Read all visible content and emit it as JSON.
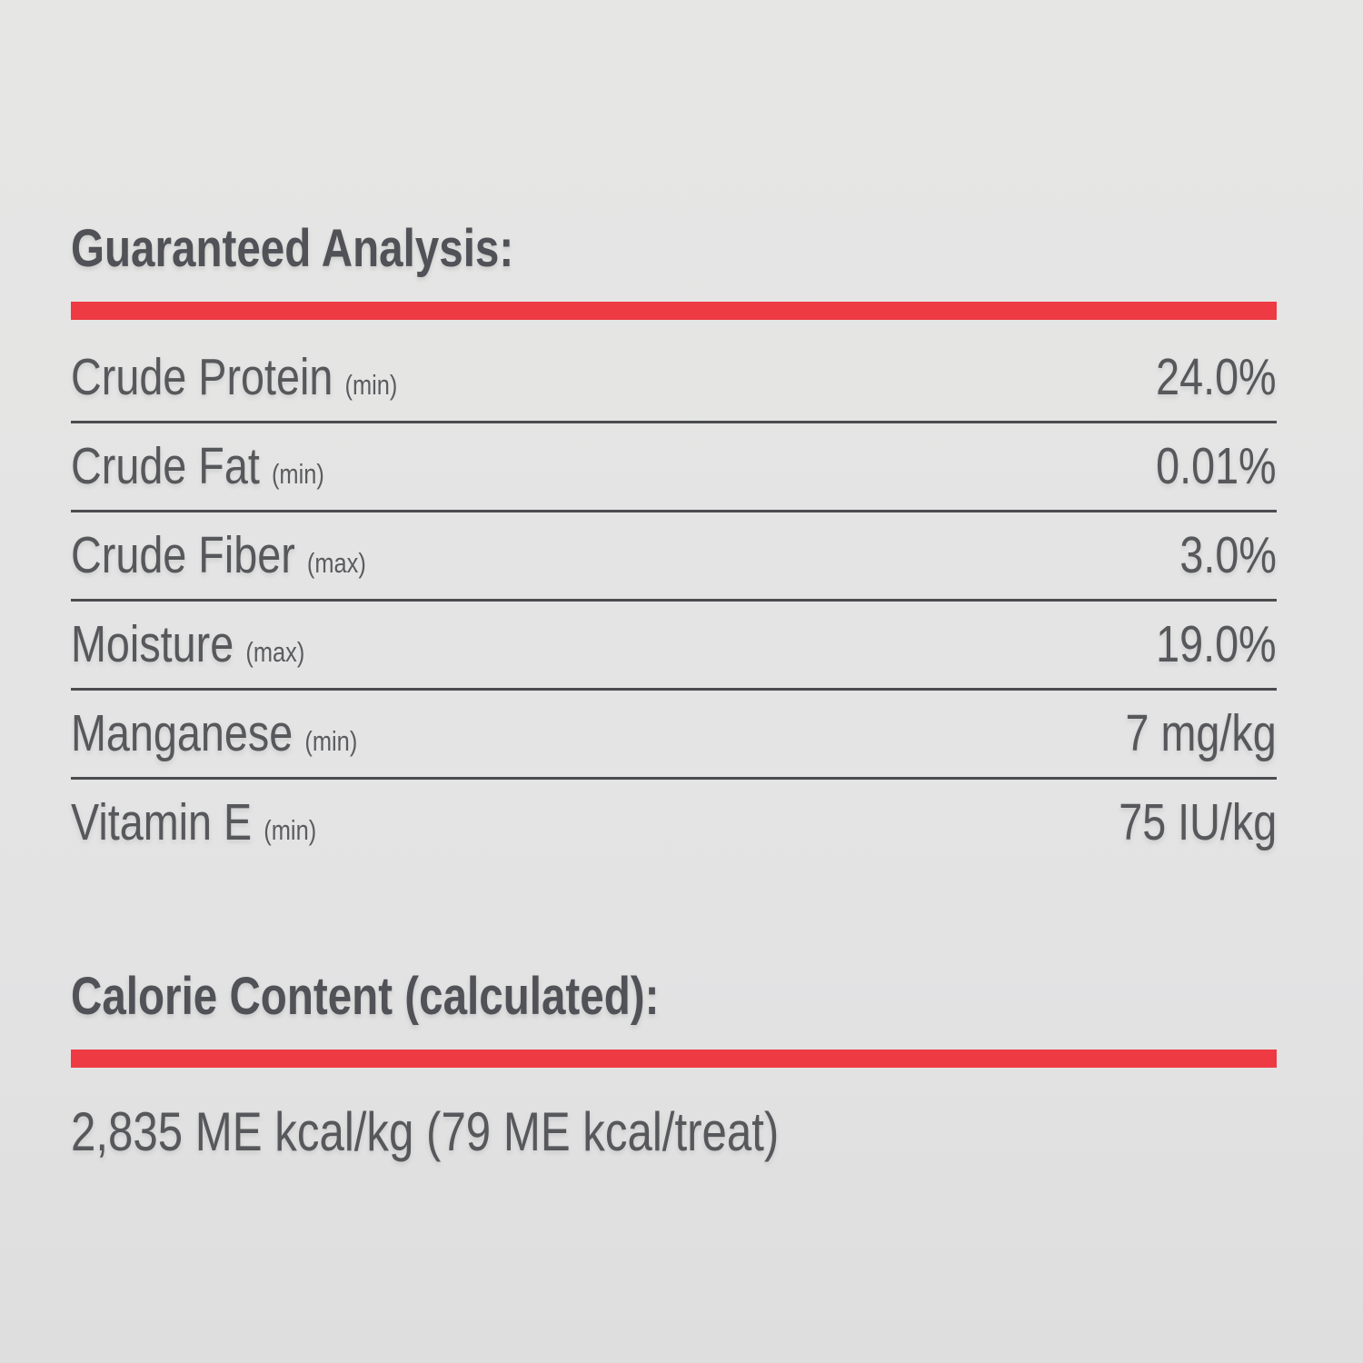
{
  "page": {
    "background_color": "#e3e3e4",
    "accent_red": "#ee3a43",
    "text_color": "#57585b",
    "divider_color": "#4b4c4f"
  },
  "guaranteed_analysis": {
    "title": "Guaranteed Analysis:",
    "rows": [
      {
        "label": "Crude Protein",
        "qualifier": "(min)",
        "value": "24.0%"
      },
      {
        "label": "Crude Fat",
        "qualifier": "(min)",
        "value": "0.01%"
      },
      {
        "label": "Crude Fiber",
        "qualifier": "(max)",
        "value": "3.0%"
      },
      {
        "label": "Moisture",
        "qualifier": "(max)",
        "value": "19.0%"
      },
      {
        "label": "Manganese",
        "qualifier": "(min)",
        "value": "7 mg/kg"
      },
      {
        "label": "Vitamin E",
        "qualifier": "(min)",
        "value": "75 IU/kg"
      }
    ]
  },
  "calorie_content": {
    "title": "Calorie Content (calculated):",
    "value_line": "2,835 ME kcal/kg (79 ME kcal/treat)"
  }
}
